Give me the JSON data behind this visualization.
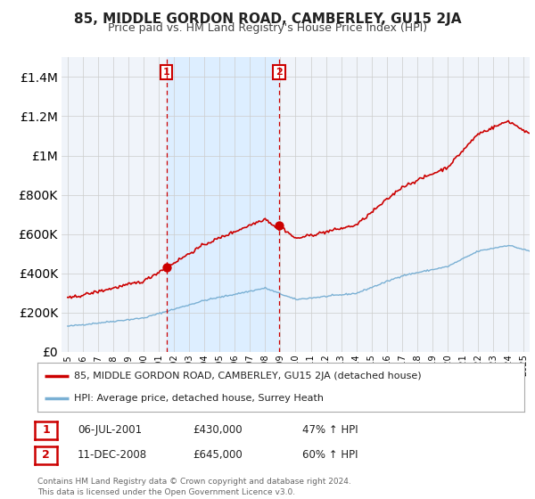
{
  "title": "85, MIDDLE GORDON ROAD, CAMBERLEY, GU15 2JA",
  "subtitle": "Price paid vs. HM Land Registry's House Price Index (HPI)",
  "property_label": "85, MIDDLE GORDON ROAD, CAMBERLEY, GU15 2JA (detached house)",
  "hpi_label": "HPI: Average price, detached house, Surrey Heath",
  "footnote": "Contains HM Land Registry data © Crown copyright and database right 2024.\nThis data is licensed under the Open Government Licence v3.0.",
  "transactions": [
    {
      "label": "1",
      "date": "06-JUL-2001",
      "price": "£430,000",
      "hpi_pct": "47% ↑ HPI",
      "year": 2001.5
    },
    {
      "label": "2",
      "date": "11-DEC-2008",
      "price": "£645,000",
      "hpi_pct": "60% ↑ HPI",
      "year": 2008.92
    }
  ],
  "property_color": "#cc0000",
  "hpi_color": "#7ab0d4",
  "shade_color": "#ddeeff",
  "marker_dot_color": "#cc0000",
  "ylim": [
    0,
    1500000
  ],
  "yticks": [
    0,
    200000,
    400000,
    600000,
    800000,
    1000000,
    1200000,
    1400000
  ],
  "xlim": [
    1994.6,
    2025.4
  ],
  "background_color": "#ffffff",
  "plot_bg_color": "#f0f4fa",
  "grid_color": "#cccccc",
  "title_fontsize": 11,
  "subtitle_fontsize": 9
}
